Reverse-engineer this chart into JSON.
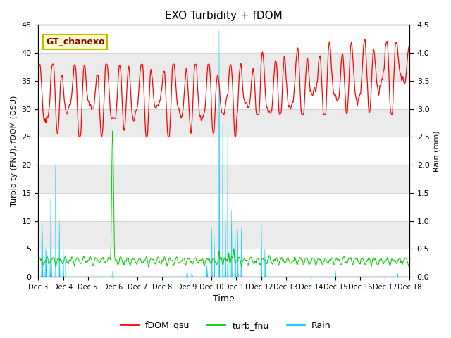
{
  "title": "EXO Turbidity + fDOM",
  "ylabel_left": "Turbidity (FNU), fDOM (QSU)",
  "ylabel_right": "Rain (mm)",
  "xlabel": "Time",
  "ylim_left": [
    0,
    45
  ],
  "ylim_right": [
    0,
    4.5
  ],
  "bg_band_light": "#ebebeb",
  "bg_band_dark": "#d8d8d8",
  "annotation_text": "GT_chanexo",
  "annotation_bg": "#ffffcc",
  "annotation_border": "#bbbb00",
  "xtick_labels": [
    "Dec 3",
    "Dec 4",
    "Dec 5",
    "Dec 6",
    "Dec 7",
    "Dec 8",
    "Dec 9",
    "Dec 10",
    "Dec 11",
    "Dec 12",
    "Dec 13",
    "Dec 14",
    "Dec 15",
    "Dec 16",
    "Dec 17",
    "Dec 18"
  ],
  "color_fdom": "#ff0000",
  "color_turb": "#00cc00",
  "color_rain": "#00ccff",
  "legend_labels": [
    "fDOM_qsu",
    "turb_fnu",
    "Rain"
  ]
}
